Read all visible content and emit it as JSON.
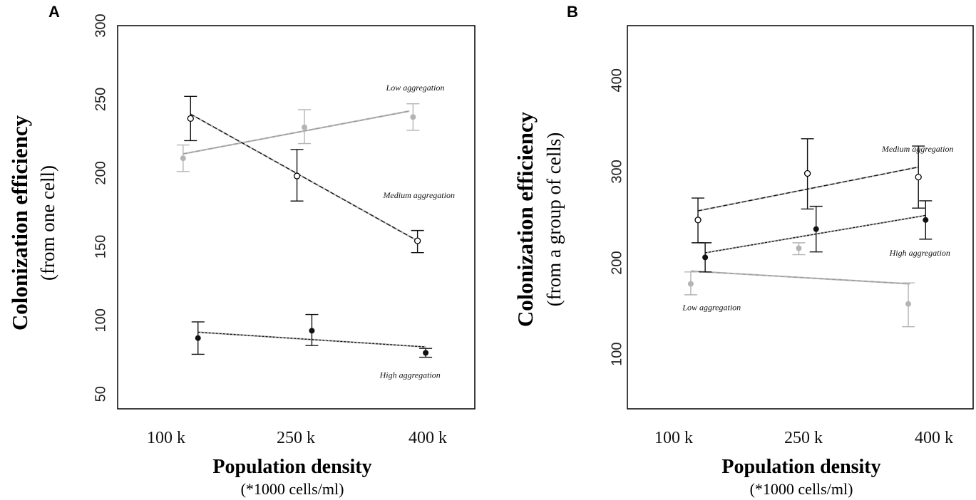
{
  "figure": {
    "colors": {
      "low": "#b4b4b4",
      "medium": "#111111",
      "high": "#111111"
    }
  },
  "chart_data": [
    {
      "panel": "A",
      "type": "scatter",
      "xlabel": "Population density",
      "xlabel_sub": "(*1000 cells/ml)",
      "ylabel": "Colonization efficiency",
      "ylabel_sub": "(from one cell)",
      "categories": [
        "100 k",
        "250 k",
        "400 k"
      ],
      "ylim": [
        40,
        300
      ],
      "yticks": [
        50,
        100,
        150,
        200,
        250,
        300
      ],
      "grid": false,
      "series": [
        {
          "name": "Low aggregation",
          "style": "low",
          "points": [
            {
              "x": 88,
              "y": 210,
              "lo": 201,
              "hi": 219
            },
            {
              "x": 251,
              "y": 231,
              "lo": 220,
              "hi": 243
            },
            {
              "x": 397,
              "y": 238,
              "lo": 229,
              "hi": 247
            }
          ],
          "fit": [
            [
              88,
              213
            ],
            [
              392,
              242
            ]
          ]
        },
        {
          "name": "Medium aggregation",
          "style": "medium",
          "points": [
            {
              "x": 98,
              "y": 237,
              "lo": 222,
              "hi": 252
            },
            {
              "x": 241,
              "y": 198,
              "lo": 181,
              "hi": 216
            },
            {
              "x": 403,
              "y": 154,
              "lo": 146,
              "hi": 161
            }
          ],
          "fit": [
            [
              98,
              240
            ],
            [
              403,
              154
            ]
          ]
        },
        {
          "name": "High aggregation",
          "style": "high",
          "points": [
            {
              "x": 108,
              "y": 88,
              "lo": 77,
              "hi": 99
            },
            {
              "x": 261,
              "y": 93,
              "lo": 83,
              "hi": 104
            },
            {
              "x": 414,
              "y": 78,
              "lo": 75,
              "hi": 81
            }
          ],
          "fit": [
            [
              108,
              92
            ],
            [
              414,
              82
            ]
          ]
        }
      ],
      "annotations": [
        {
          "text": "Low aggregation",
          "x": 400,
          "y": 256
        },
        {
          "text": "Medium aggregation",
          "x": 405,
          "y": 183
        },
        {
          "text": "High aggregation",
          "x": 393,
          "y": 61
        }
      ]
    },
    {
      "panel": "B",
      "type": "scatter",
      "xlabel": "Population density",
      "xlabel_sub": "(*1000 cells/ml)",
      "ylabel": "Colonization efficiency",
      "ylabel_sub": "(from a group of cells)",
      "categories": [
        "100 k",
        "250 k",
        "400 k"
      ],
      "ylim": [
        40,
        460
      ],
      "yticks": [
        100,
        200,
        300,
        400
      ],
      "grid": false,
      "series": [
        {
          "name": "Low aggregation",
          "style": "low",
          "points": [
            {
              "x": 88,
              "y": 177,
              "lo": 165,
              "hi": 190
            },
            {
              "x": 238,
              "y": 216,
              "lo": 209,
              "hi": 222
            },
            {
              "x": 390,
              "y": 155,
              "lo": 130,
              "hi": 178
            }
          ],
          "fit": [
            [
              88,
              191
            ],
            [
              392,
              177
            ]
          ]
        },
        {
          "name": "Medium aggregation",
          "style": "medium",
          "points": [
            {
              "x": 98,
              "y": 247,
              "lo": 222,
              "hi": 271
            },
            {
              "x": 250,
              "y": 298,
              "lo": 259,
              "hi": 336
            },
            {
              "x": 404,
              "y": 294,
              "lo": 260,
              "hi": 328
            }
          ],
          "fit": [
            [
              98,
              257
            ],
            [
              404,
              305
            ]
          ]
        },
        {
          "name": "High aggregation",
          "style": "high",
          "points": [
            {
              "x": 108,
              "y": 206,
              "lo": 190,
              "hi": 222
            },
            {
              "x": 262,
              "y": 237,
              "lo": 212,
              "hi": 262
            },
            {
              "x": 414,
              "y": 247,
              "lo": 226,
              "hi": 268
            }
          ],
          "fit": [
            [
              108,
              211
            ],
            [
              414,
              252
            ]
          ]
        }
      ],
      "annotations": [
        {
          "text": "Medium aggregation",
          "x": 403,
          "y": 322
        },
        {
          "text": "High aggregation",
          "x": 406,
          "y": 208
        },
        {
          "text": "Low aggregation",
          "x": 117,
          "y": 148
        }
      ]
    }
  ]
}
